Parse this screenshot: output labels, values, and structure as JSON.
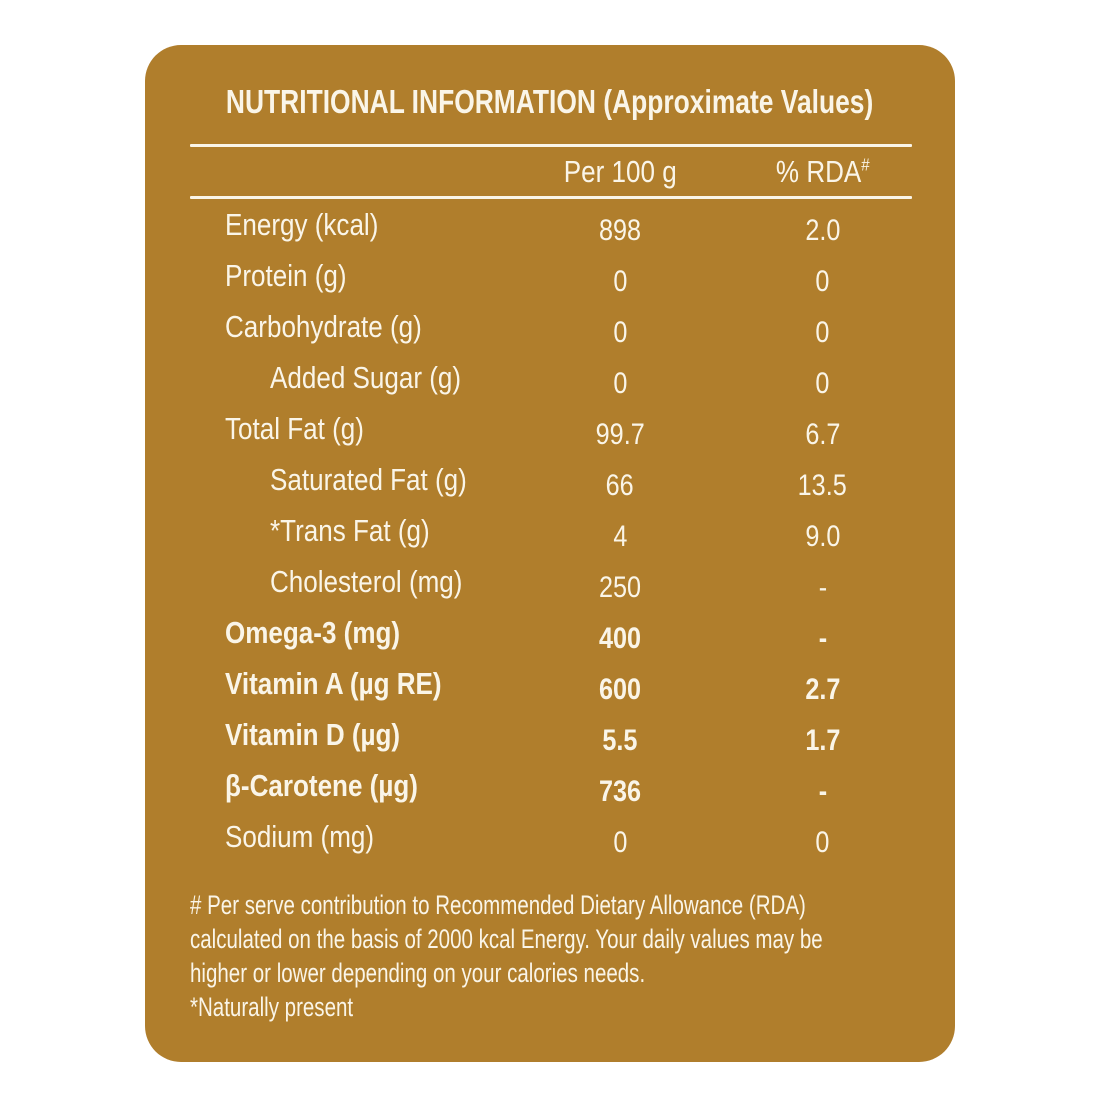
{
  "colors": {
    "background": "#B07E2C",
    "text": "#FAF5E8",
    "page_background": "#FFFFFF"
  },
  "title": "NUTRITIONAL INFORMATION (Approximate Values)",
  "table": {
    "column_headers": {
      "amount": "Per 100 g",
      "rda": "% RDA",
      "rda_superscript": "#"
    },
    "rows": [
      {
        "label": "Energy (kcal)",
        "per_100g": "898",
        "rda_percent": "2.0",
        "indent": false,
        "bold": false
      },
      {
        "label": "Protein (g)",
        "per_100g": "0",
        "rda_percent": "0",
        "indent": false,
        "bold": false
      },
      {
        "label": "Carbohydrate (g)",
        "per_100g": "0",
        "rda_percent": "0",
        "indent": false,
        "bold": false
      },
      {
        "label": "Added Sugar (g)",
        "per_100g": "0",
        "rda_percent": "0",
        "indent": true,
        "bold": false
      },
      {
        "label": "Total Fat (g)",
        "per_100g": "99.7",
        "rda_percent": "6.7",
        "indent": false,
        "bold": false
      },
      {
        "label": "Saturated Fat (g)",
        "per_100g": "66",
        "rda_percent": "13.5",
        "indent": true,
        "bold": false
      },
      {
        "label": "*Trans Fat (g)",
        "per_100g": "4",
        "rda_percent": "9.0",
        "indent": true,
        "bold": false
      },
      {
        "label": "Cholesterol (mg)",
        "per_100g": "250",
        "rda_percent": "-",
        "indent": true,
        "bold": false
      },
      {
        "label": "Omega-3 (mg)",
        "per_100g": "400",
        "rda_percent": "-",
        "indent": false,
        "bold": true
      },
      {
        "label": "Vitamin A (µg RE)",
        "per_100g": "600",
        "rda_percent": "2.7",
        "indent": false,
        "bold": true
      },
      {
        "label": "Vitamin D (µg)",
        "per_100g": "5.5",
        "rda_percent": "1.7",
        "indent": false,
        "bold": true
      },
      {
        "label": "β-Carotene (µg)",
        "per_100g": "736",
        "rda_percent": "-",
        "indent": false,
        "bold": true
      },
      {
        "label": "Sodium (mg)",
        "per_100g": "0",
        "rda_percent": "0",
        "indent": false,
        "bold": false
      }
    ]
  },
  "footnotes": {
    "lines": [
      "# Per serve contribution to Recommended Dietary Allowance (RDA)",
      "calculated on the basis of 2000 kcal Energy. Your daily values may be",
      "higher or lower depending on your calories needs.",
      "*Naturally present"
    ]
  }
}
